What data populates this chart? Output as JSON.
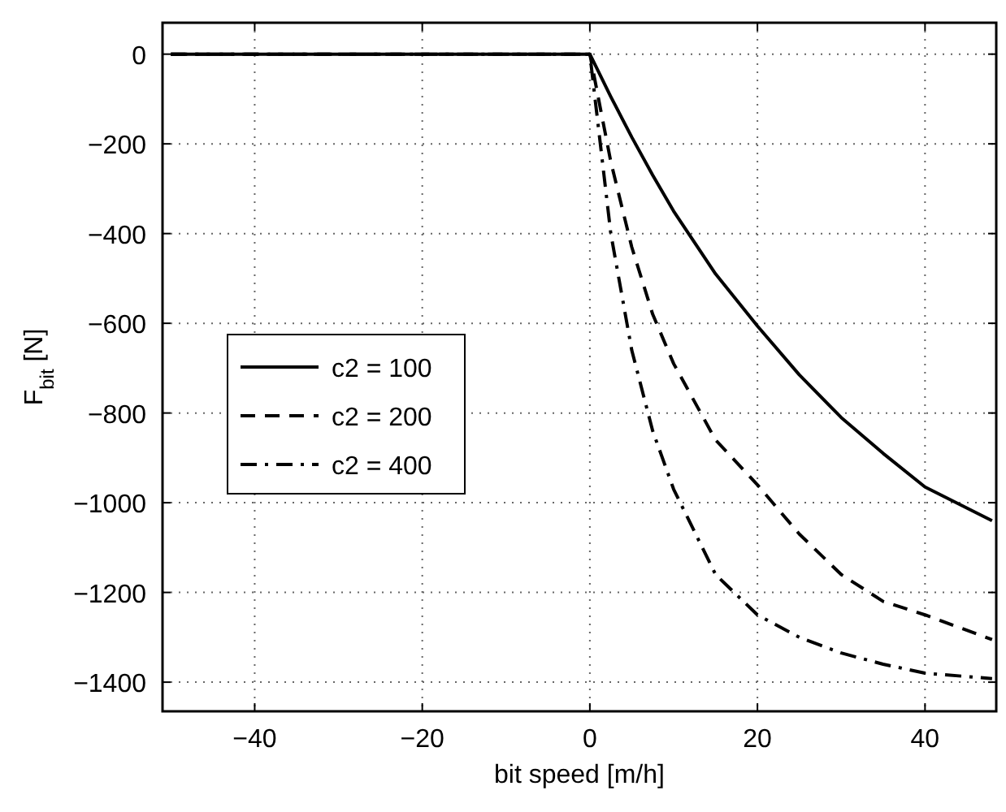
{
  "chart_data": {
    "type": "line",
    "xlabel": "bit speed [m/h]",
    "ylabel": "F$_{bit}$ [N]",
    "xlim": [
      -51,
      48.5
    ],
    "ylim": [
      -1465,
      70
    ],
    "xticks": [
      -40,
      -20,
      0,
      20,
      40
    ],
    "yticks": [
      0,
      -200,
      -400,
      -600,
      -800,
      -1000,
      -1200,
      -1400
    ],
    "grid": true,
    "legend": "left",
    "marker": "none",
    "x": [
      -50,
      0,
      2.5,
      5,
      7.5,
      10,
      15,
      20,
      25,
      30,
      35,
      40,
      48
    ],
    "series": [
      {
        "name": "c2 = 100",
        "color": "#000000",
        "line_style": "solid",
        "values": [
          0,
          0,
          -95,
          -185,
          -270,
          -350,
          -490,
          -606,
          -715,
          -810,
          -890,
          -965,
          -1040
        ]
      },
      {
        "name": "c2 = 200",
        "color": "#000000",
        "line_style": "dashed",
        "values": [
          0,
          0,
          -240,
          -430,
          -580,
          -690,
          -860,
          -960,
          -1070,
          -1160,
          -1220,
          -1250,
          -1305
        ]
      },
      {
        "name": "c2 = 400",
        "color": "#000000",
        "line_style": "dashdot",
        "values": [
          0,
          0,
          -400,
          -660,
          -840,
          -970,
          -1160,
          -1250,
          -1300,
          -1335,
          -1360,
          -1380,
          -1392
        ]
      }
    ]
  }
}
